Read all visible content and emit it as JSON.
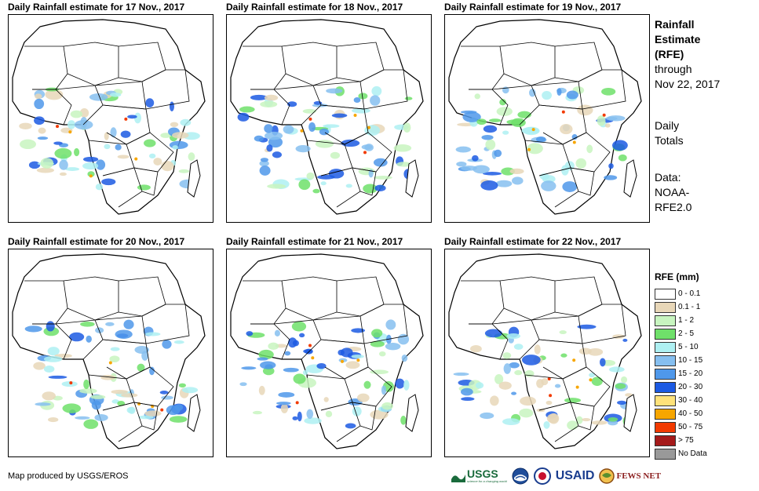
{
  "panels": [
    {
      "title": "Daily Rainfall estimate for 17 Nov., 2017"
    },
    {
      "title": "Daily Rainfall estimate for 18 Nov., 2017"
    },
    {
      "title": "Daily Rainfall estimate for 19 Nov., 2017"
    },
    {
      "title": "Daily Rainfall estimate for 20 Nov., 2017"
    },
    {
      "title": "Daily Rainfall estimate for 21 Nov., 2017"
    },
    {
      "title": "Daily Rainfall estimate for 22 Nov., 2017"
    }
  ],
  "side": {
    "heading_line1": "Rainfall",
    "heading_line2": "Estimate",
    "heading_line3": "(RFE)",
    "through": "through",
    "date": "Nov 22, 2017",
    "totals_line1": "Daily",
    "totals_line2": "Totals",
    "data_line1": "Data:",
    "data_line2": "NOAA-",
    "data_line3": "RFE2.0"
  },
  "legend": {
    "title": "RFE (mm)",
    "items": [
      {
        "label": "0 - 0.1",
        "color": "#ffffff"
      },
      {
        "label": "0.1 - 1",
        "color": "#e8d7b8"
      },
      {
        "label": "1 - 2",
        "color": "#c8f5c0"
      },
      {
        "label": "2 - 5",
        "color": "#6fe06a"
      },
      {
        "label": "5 - 10",
        "color": "#aef0f2"
      },
      {
        "label": "10 - 15",
        "color": "#86bff0"
      },
      {
        "label": "15 - 20",
        "color": "#4f98ea"
      },
      {
        "label": "20 - 30",
        "color": "#1c5ae3"
      },
      {
        "label": "30 - 40",
        "color": "#ffe27a"
      },
      {
        "label": "40 - 50",
        "color": "#f7a600"
      },
      {
        "label": "50 - 75",
        "color": "#f23a00"
      },
      {
        "label": "> 75",
        "color": "#a51a1a"
      },
      {
        "label": "No Data",
        "color": "#999999"
      }
    ]
  },
  "credit": "Map produced by USGS/EROS",
  "logos": {
    "usgs": "USGS",
    "usgs_tagline": "science for a changing world",
    "usaid": "USAID",
    "fews": "FEWS NET"
  }
}
